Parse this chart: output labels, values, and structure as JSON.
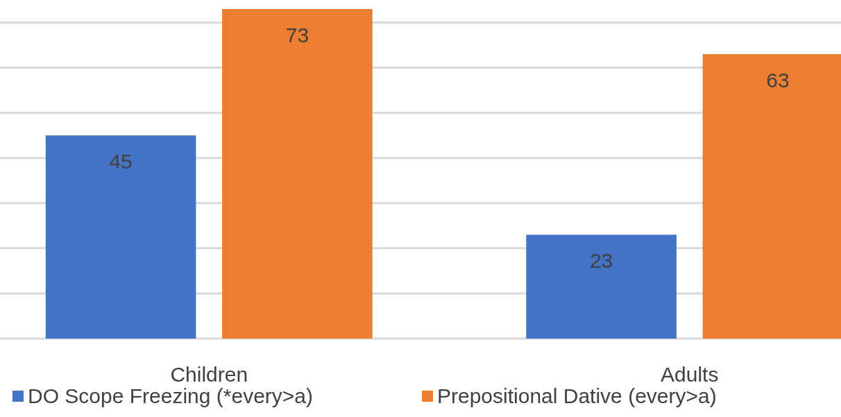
{
  "chart_data": {
    "type": "bar",
    "categories": [
      "Children",
      "Adults"
    ],
    "series": [
      {
        "name": "DO Scope Freezing (*every>a)",
        "color": "#4472c4",
        "values": [
          45,
          23
        ]
      },
      {
        "name": "Prepositional Dative (every>a)",
        "color": "#ed7d31",
        "values": [
          73,
          63
        ]
      }
    ],
    "ylim": [
      0,
      75
    ],
    "yticks": [
      {
        "value": 0,
        "label": null
      },
      {
        "value": 10,
        "label": null
      },
      {
        "value": 20,
        "label": null
      },
      {
        "value": 30,
        "label": null
      },
      {
        "value": 40,
        "label": null
      },
      {
        "value": 50,
        "label": null
      },
      {
        "value": 60,
        "label": null
      },
      {
        "value": 70,
        "label": null
      }
    ],
    "tick_labels": "x",
    "grid": "y",
    "data_labels": true,
    "legend": "bottom left"
  }
}
